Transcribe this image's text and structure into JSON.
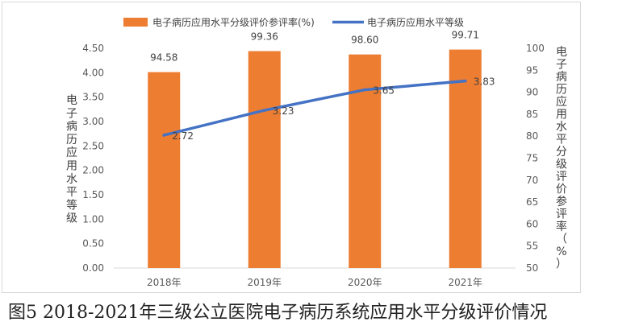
{
  "chart_data": {
    "type": "bar+line",
    "categories": [
      "2018年",
      "2019年",
      "2020年",
      "2021年"
    ],
    "series": [
      {
        "name": "电子病历应用水平分级评价参评率(%)",
        "kind": "bar",
        "axis": "right",
        "values": [
          94.58,
          99.36,
          98.6,
          99.71
        ],
        "labels": [
          "94.58",
          "99.36",
          "98.60",
          "99.71"
        ],
        "color": "#ED7D31"
      },
      {
        "name": "电子病历应用水平等级",
        "kind": "line",
        "axis": "left",
        "values": [
          2.72,
          3.23,
          3.65,
          3.83
        ],
        "labels": [
          "2.72",
          "3.23",
          "3.65",
          "3.83"
        ],
        "color": "#4472C4"
      }
    ],
    "left_axis": {
      "title": "电子病历应用水平等级",
      "ylim": [
        0,
        4.5
      ],
      "ticks": [
        "0.00",
        "0.50",
        "1.00",
        "1.50",
        "2.00",
        "2.50",
        "3.00",
        "3.50",
        "4.00",
        "4.50"
      ]
    },
    "right_axis": {
      "title": "电子病历应用水平分级评价参评率（%）",
      "ylim": [
        50,
        100
      ],
      "ticks": [
        "50",
        "55",
        "60",
        "65",
        "70",
        "75",
        "80",
        "85",
        "90",
        "95",
        "100"
      ]
    },
    "legend_position": "top",
    "grid": false
  },
  "caption": "图5 2018-2021年三级公立医院电子病历系统应用水平分级评价情况"
}
